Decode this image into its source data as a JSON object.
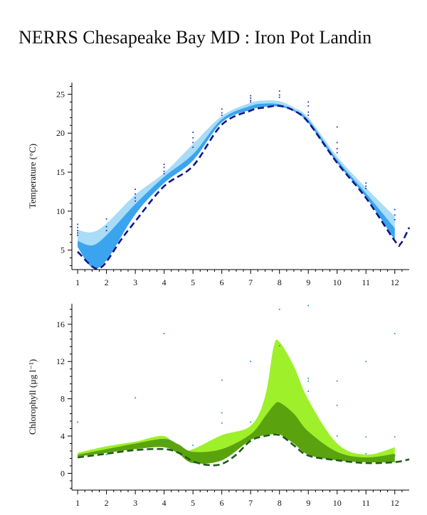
{
  "title": "NERRS Chesapeake Bay MD : Iron Pot Landin",
  "colors": {
    "temp_outer": "#a9dcf7",
    "temp_inner": "#3aa5ee",
    "temp_line": "#10188a",
    "temp_points": "#2233cc",
    "chl_outer": "#9ef02a",
    "chl_inner": "#5aa30e",
    "chl_line": "#1f5c1a",
    "chl_points": "#1f9ad6"
  },
  "chart_data": [
    {
      "type": "area",
      "ylabel": "Temperature (°C)",
      "xlim": [
        0.8,
        12.5
      ],
      "ylim": [
        2.5,
        26.5
      ],
      "xticks": [
        1,
        2,
        3,
        4,
        5,
        6,
        7,
        8,
        9,
        10,
        11,
        12
      ],
      "yticks": [
        5,
        10,
        15,
        20,
        25
      ],
      "series": [
        {
          "role": "outer-band",
          "x": [
            1,
            1.5,
            2,
            3,
            4,
            5,
            6,
            7,
            7.5,
            8,
            8.5,
            9,
            10,
            11,
            12
          ],
          "upper": [
            7.6,
            7.3,
            8.4,
            12.1,
            14.9,
            18.6,
            22.2,
            23.9,
            24.2,
            24.1,
            23.3,
            22.0,
            17.0,
            13.0,
            9.3
          ],
          "lower": [
            5.4,
            2.8,
            3.7,
            9.6,
            13.6,
            16.5,
            21.4,
            23.0,
            23.4,
            23.4,
            22.8,
            21.3,
            16.2,
            11.8,
            6.3
          ]
        },
        {
          "role": "inner-band",
          "x": [
            1,
            1.5,
            2,
            3,
            4,
            5,
            6,
            7,
            7.5,
            8,
            8.5,
            9,
            10,
            11,
            12
          ],
          "upper": [
            6.2,
            5.6,
            6.9,
            10.9,
            14.4,
            17.3,
            21.8,
            23.5,
            23.8,
            23.7,
            23.0,
            21.7,
            16.6,
            12.3,
            7.8
          ],
          "lower": [
            5.4,
            2.8,
            3.7,
            9.6,
            13.6,
            16.5,
            21.4,
            23.0,
            23.4,
            23.4,
            22.8,
            21.3,
            16.2,
            11.8,
            6.3
          ]
        },
        {
          "role": "dashed-line",
          "x": [
            1,
            1.5,
            1.75,
            2,
            2.5,
            3,
            4,
            5,
            6,
            7,
            7.5,
            8,
            8.5,
            9,
            10,
            11,
            12,
            12.2,
            12.5
          ],
          "y": [
            4.8,
            2.9,
            2.7,
            3.5,
            6.3,
            8.7,
            13.2,
            15.8,
            21.1,
            22.9,
            23.3,
            23.5,
            22.9,
            21.4,
            16.2,
            11.7,
            6.2,
            5.8,
            7.9
          ]
        },
        {
          "role": "points",
          "x": [
            1,
            1,
            1,
            1,
            1,
            2,
            2,
            2,
            3,
            3,
            3,
            3,
            4,
            4,
            4,
            4,
            5,
            5,
            5,
            5,
            6,
            6,
            6,
            7,
            7,
            7,
            7,
            8,
            8,
            8,
            9,
            9,
            9,
            9,
            10,
            10,
            10,
            10,
            11,
            11,
            11,
            12,
            12,
            12
          ],
          "y": [
            8.3,
            7.9,
            7.5,
            7.2,
            6.9,
            9.0,
            8.0,
            7.5,
            12.8,
            12.2,
            11.7,
            11.3,
            16.0,
            15.6,
            15.1,
            14.8,
            20.1,
            19.4,
            18.8,
            18.2,
            23.1,
            22.6,
            22.3,
            24.8,
            24.5,
            24.2,
            24.0,
            25.4,
            24.9,
            24.6,
            24.0,
            23.5,
            22.7,
            22.3,
            20.8,
            18.8,
            18.0,
            17.5,
            13.6,
            13.2,
            12.9,
            10.2,
            9.5,
            8.9
          ]
        }
      ]
    },
    {
      "type": "area",
      "ylabel": "Chlorophyll (µg l⁻¹)",
      "xlim": [
        0.8,
        12.5
      ],
      "ylim": [
        -1.8,
        18.2
      ],
      "xticks": [
        1,
        2,
        3,
        4,
        5,
        6,
        7,
        8,
        9,
        10,
        11,
        12
      ],
      "yticks": [
        0,
        4,
        8,
        12,
        16
      ],
      "series": [
        {
          "role": "outer-band",
          "x": [
            1,
            2,
            3,
            4,
            4.5,
            5,
            6,
            7,
            7.5,
            7.8,
            8,
            8.5,
            9,
            10,
            11,
            12
          ],
          "upper": [
            2.2,
            2.9,
            3.4,
            4.0,
            2.5,
            2.6,
            4.1,
            5.1,
            8.2,
            13.6,
            14.1,
            11.5,
            7.9,
            3.2,
            2.0,
            2.8
          ],
          "lower": [
            1.8,
            2.2,
            2.6,
            2.8,
            2.1,
            1.1,
            1.4,
            3.6,
            4.1,
            4.2,
            4.2,
            3.2,
            2.0,
            1.4,
            1.2,
            1.2
          ]
        },
        {
          "role": "inner-band",
          "x": [
            1,
            2,
            3,
            4,
            4.5,
            5,
            6,
            7,
            7.5,
            7.8,
            8,
            8.5,
            9,
            10,
            11,
            12
          ],
          "upper": [
            2.0,
            2.6,
            3.2,
            3.7,
            3.1,
            2.3,
            2.6,
            4.2,
            6.1,
            7.3,
            7.6,
            6.4,
            4.5,
            2.3,
            1.7,
            2.1
          ],
          "lower": [
            1.8,
            2.2,
            2.6,
            2.8,
            2.1,
            1.1,
            1.4,
            3.6,
            4.1,
            4.2,
            4.2,
            3.2,
            2.0,
            1.4,
            1.2,
            1.2
          ]
        },
        {
          "role": "dashed-line",
          "x": [
            1,
            2,
            3,
            4,
            4.5,
            5,
            5.5,
            6,
            6.5,
            7,
            7.5,
            8,
            8.5,
            9,
            10,
            11,
            12,
            12.5
          ],
          "y": [
            1.7,
            2.1,
            2.5,
            2.6,
            2.2,
            1.3,
            0.9,
            1.0,
            2.0,
            3.5,
            4.0,
            4.1,
            3.0,
            1.9,
            1.4,
            1.1,
            1.2,
            1.5
          ]
        },
        {
          "role": "points",
          "x": [
            1,
            2,
            3,
            4,
            4,
            5,
            6,
            6,
            6,
            7,
            7,
            8,
            8,
            9,
            9,
            9,
            9,
            10,
            10,
            10,
            11,
            11,
            11,
            12,
            12,
            12
          ],
          "y": [
            5.5,
            2.0,
            8.1,
            15.0,
            3.5,
            3.0,
            10.0,
            6.5,
            5.4,
            12.0,
            5.5,
            17.6,
            13.7,
            18.0,
            10.2,
            9.9,
            8.8,
            9.9,
            7.3,
            4.0,
            12.0,
            3.9,
            2.1,
            15.0,
            3.9,
            1.9
          ]
        }
      ]
    }
  ]
}
